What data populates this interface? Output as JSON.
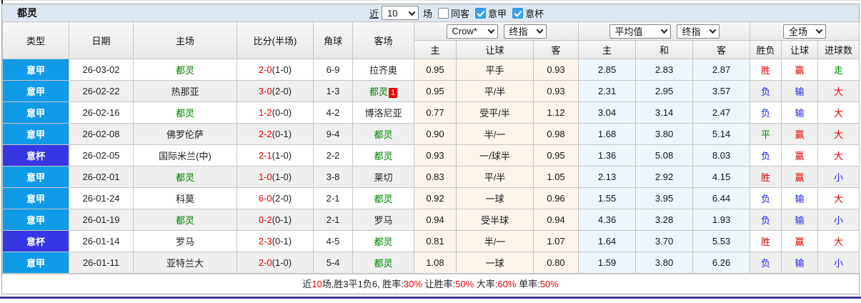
{
  "header": {
    "team": "都灵",
    "near_label": "近",
    "count_value": "10",
    "matches_label": "场",
    "filters": [
      {
        "label": "同客",
        "checked": false
      },
      {
        "label": "意甲",
        "checked": true
      },
      {
        "label": "意杯",
        "checked": true
      }
    ]
  },
  "selects": {
    "company": "Crow*",
    "time1": "终指",
    "average": "平均值",
    "time2": "终指",
    "scope": "全场"
  },
  "table": {
    "main_headers": [
      "类型",
      "日期",
      "主场",
      "比分(半场)",
      "角球",
      "客场"
    ],
    "sub_headers": [
      "主",
      "让球",
      "客",
      "主",
      "和",
      "客",
      "胜负",
      "让球",
      "进球数"
    ],
    "rows": [
      {
        "league": "意甲",
        "league_type": "serie",
        "date": "26-03-02",
        "home": {
          "text": "都灵",
          "target": true
        },
        "score": "2-0",
        "half": "(1-0)",
        "corner": "6-9",
        "away": {
          "text": "拉齐奥",
          "target": false,
          "badge": ""
        },
        "crow_home": "0.95",
        "crow_line": "平手",
        "crow_away": "0.93",
        "avg_home": "2.85",
        "avg_draw": "2.83",
        "avg_away": "2.87",
        "result": {
          "text": "胜",
          "color": "red"
        },
        "handicap_result": {
          "text": "赢",
          "color": "red"
        },
        "goals_result": {
          "text": "走",
          "color": "green"
        }
      },
      {
        "league": "意甲",
        "league_type": "serie",
        "date": "26-02-22",
        "home": {
          "text": "热那亚",
          "target": false
        },
        "score": "3-0",
        "half": "(2-0)",
        "corner": "1-3",
        "away": {
          "text": "都灵",
          "target": true,
          "badge": "1"
        },
        "crow_home": "0.95",
        "crow_line": "平/半",
        "crow_away": "0.93",
        "avg_home": "2.31",
        "avg_draw": "2.95",
        "avg_away": "3.57",
        "result": {
          "text": "负",
          "color": "blue"
        },
        "handicap_result": {
          "text": "输",
          "color": "blue"
        },
        "goals_result": {
          "text": "大",
          "color": "red"
        }
      },
      {
        "league": "意甲",
        "league_type": "serie",
        "date": "26-02-16",
        "home": {
          "text": "都灵",
          "target": true
        },
        "score": "1-2",
        "half": "(0-0)",
        "corner": "4-2",
        "away": {
          "text": "博洛尼亚",
          "target": false,
          "badge": ""
        },
        "crow_home": "0.77",
        "crow_line": "受平/半",
        "crow_away": "1.12",
        "avg_home": "3.04",
        "avg_draw": "3.14",
        "avg_away": "2.47",
        "result": {
          "text": "负",
          "color": "blue"
        },
        "handicap_result": {
          "text": "输",
          "color": "blue"
        },
        "goals_result": {
          "text": "大",
          "color": "red"
        }
      },
      {
        "league": "意甲",
        "league_type": "serie",
        "date": "26-02-08",
        "home": {
          "text": "佛罗伦萨",
          "target": false
        },
        "score": "2-2",
        "half": "(0-1)",
        "corner": "9-4",
        "away": {
          "text": "都灵",
          "target": true,
          "badge": ""
        },
        "crow_home": "0.90",
        "crow_line": "半/一",
        "crow_away": "0.98",
        "avg_home": "1.68",
        "avg_draw": "3.80",
        "avg_away": "5.14",
        "result": {
          "text": "平",
          "color": "green"
        },
        "handicap_result": {
          "text": "赢",
          "color": "red"
        },
        "goals_result": {
          "text": "大",
          "color": "red"
        }
      },
      {
        "league": "意杯",
        "league_type": "cup",
        "date": "26-02-05",
        "home": {
          "text": "国际米兰(中)",
          "target": false
        },
        "score": "2-1",
        "half": "(1-0)",
        "corner": "2-2",
        "away": {
          "text": "都灵",
          "target": true,
          "badge": ""
        },
        "crow_home": "0.93",
        "crow_line": "一/球半",
        "crow_away": "0.95",
        "avg_home": "1.36",
        "avg_draw": "5.08",
        "avg_away": "8.03",
        "result": {
          "text": "负",
          "color": "blue"
        },
        "handicap_result": {
          "text": "赢",
          "color": "red"
        },
        "goals_result": {
          "text": "大",
          "color": "red"
        }
      },
      {
        "league": "意甲",
        "league_type": "serie",
        "date": "26-02-01",
        "home": {
          "text": "都灵",
          "target": true
        },
        "score": "1-0",
        "half": "(1-0)",
        "corner": "3-8",
        "away": {
          "text": "莱切",
          "target": false,
          "badge": ""
        },
        "crow_home": "0.83",
        "crow_line": "平/半",
        "crow_away": "1.05",
        "avg_home": "2.13",
        "avg_draw": "2.92",
        "avg_away": "4.15",
        "result": {
          "text": "胜",
          "color": "red"
        },
        "handicap_result": {
          "text": "赢",
          "color": "red"
        },
        "goals_result": {
          "text": "小",
          "color": "blue"
        }
      },
      {
        "league": "意甲",
        "league_type": "serie",
        "date": "26-01-24",
        "home": {
          "text": "科莫",
          "target": false
        },
        "score": "6-0",
        "half": "(2-0)",
        "corner": "2-1",
        "away": {
          "text": "都灵",
          "target": true,
          "badge": ""
        },
        "crow_home": "0.92",
        "crow_line": "一球",
        "crow_away": "0.96",
        "avg_home": "1.55",
        "avg_draw": "3.95",
        "avg_away": "6.44",
        "result": {
          "text": "负",
          "color": "blue"
        },
        "handicap_result": {
          "text": "输",
          "color": "blue"
        },
        "goals_result": {
          "text": "大",
          "color": "red"
        }
      },
      {
        "league": "意甲",
        "league_type": "serie",
        "date": "26-01-19",
        "home": {
          "text": "都灵",
          "target": true
        },
        "score": "0-2",
        "half": "(0-1)",
        "corner": "2-1",
        "away": {
          "text": "罗马",
          "target": false,
          "badge": ""
        },
        "crow_home": "0.94",
        "crow_line": "受半球",
        "crow_away": "0.94",
        "avg_home": "4.36",
        "avg_draw": "3.28",
        "avg_away": "1.93",
        "result": {
          "text": "负",
          "color": "blue"
        },
        "handicap_result": {
          "text": "输",
          "color": "blue"
        },
        "goals_result": {
          "text": "小",
          "color": "blue"
        }
      },
      {
        "league": "意杯",
        "league_type": "cup",
        "date": "26-01-14",
        "home": {
          "text": "罗马",
          "target": false
        },
        "score": "2-3",
        "half": "(0-1)",
        "corner": "4-5",
        "away": {
          "text": "都灵",
          "target": true,
          "badge": ""
        },
        "crow_home": "0.81",
        "crow_line": "半/一",
        "crow_away": "1.07",
        "avg_home": "1.64",
        "avg_draw": "3.70",
        "avg_away": "5.53",
        "result": {
          "text": "胜",
          "color": "red"
        },
        "handicap_result": {
          "text": "赢",
          "color": "red"
        },
        "goals_result": {
          "text": "大",
          "color": "red"
        }
      },
      {
        "league": "意甲",
        "league_type": "serie",
        "date": "26-01-11",
        "home": {
          "text": "亚特兰大",
          "target": false
        },
        "score": "2-0",
        "half": "(1-0)",
        "corner": "5-4",
        "away": {
          "text": "都灵",
          "target": true,
          "badge": ""
        },
        "crow_home": "1.08",
        "crow_line": "一球",
        "crow_away": "0.80",
        "avg_home": "1.59",
        "avg_draw": "3.80",
        "avg_away": "6.26",
        "result": {
          "text": "负",
          "color": "blue"
        },
        "handicap_result": {
          "text": "输",
          "color": "blue"
        },
        "goals_result": {
          "text": "小",
          "color": "blue"
        }
      }
    ]
  },
  "footer": {
    "segments": [
      {
        "text": "近",
        "red": false
      },
      {
        "text": "10",
        "red": true
      },
      {
        "text": "场,胜3平1负6, 胜率:",
        "red": false
      },
      {
        "text": "30%",
        "red": true
      },
      {
        "text": " 让胜率:",
        "red": false
      },
      {
        "text": "50%",
        "red": true
      },
      {
        "text": " 大率:",
        "red": false
      },
      {
        "text": "60%",
        "red": true
      },
      {
        "text": " 单率:",
        "red": false
      },
      {
        "text": "50%",
        "red": true
      }
    ]
  },
  "colors": {
    "serie_a_badge": "#0f9be8",
    "coppa_badge": "#3636e4",
    "target_team_green": "#008000",
    "win_red": "#e60000",
    "lose_blue": "#2222ee",
    "draw_green": "#008800",
    "topbar_bg": "#dde7f2",
    "bottom_line": "#43398e"
  }
}
